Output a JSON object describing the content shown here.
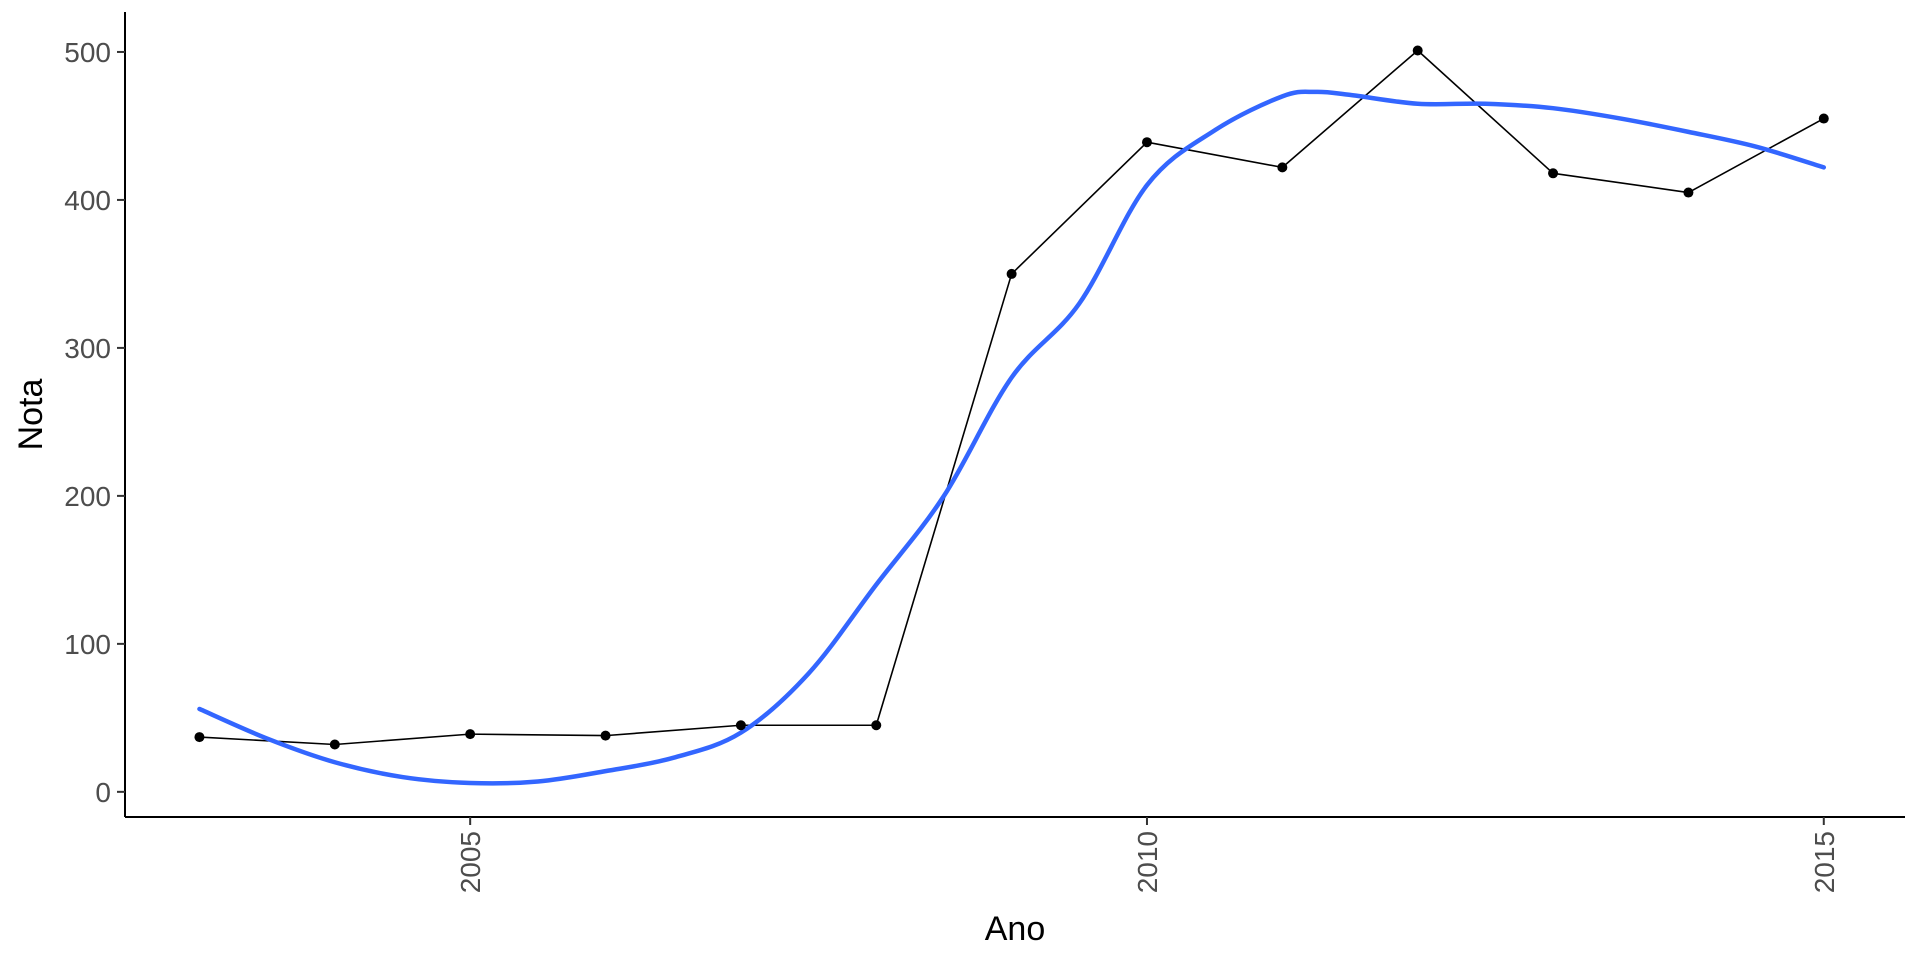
{
  "chart_data": {
    "type": "line",
    "xlabel": "Ano",
    "ylabel": "Nota",
    "xlim": [
      2002.45,
      2015.6
    ],
    "ylim": [
      -17,
      527
    ],
    "x_ticks": [
      2005,
      2010,
      2015
    ],
    "y_ticks": [
      0,
      100,
      200,
      300,
      400,
      500
    ],
    "grid": false,
    "series": [
      {
        "kind": "line-with-points",
        "color": "#000000",
        "x": [
          2003,
          2004,
          2005,
          2006,
          2007,
          2008,
          2009,
          2010,
          2011,
          2012,
          2013,
          2014,
          2015
        ],
        "y": [
          37,
          32,
          39,
          38,
          45,
          45,
          350,
          439,
          422,
          501,
          418,
          405,
          455
        ]
      },
      {
        "kind": "smooth",
        "color": "#3366FF",
        "x": [
          2003,
          2003.5,
          2004,
          2004.5,
          2005,
          2005.5,
          2006,
          2006.5,
          2007,
          2007.5,
          2008,
          2008.5,
          2009,
          2009.5,
          2010,
          2010.5,
          2011,
          2011.25,
          2011.5,
          2012,
          2012.5,
          2013,
          2013.5,
          2014,
          2014.5,
          2015
        ],
        "y": [
          56,
          36,
          20,
          10,
          6,
          7,
          14,
          23,
          40,
          80,
          140,
          200,
          280,
          330,
          410,
          447,
          470,
          473,
          471,
          465,
          465,
          462,
          455,
          446,
          436,
          422
        ]
      }
    ]
  }
}
